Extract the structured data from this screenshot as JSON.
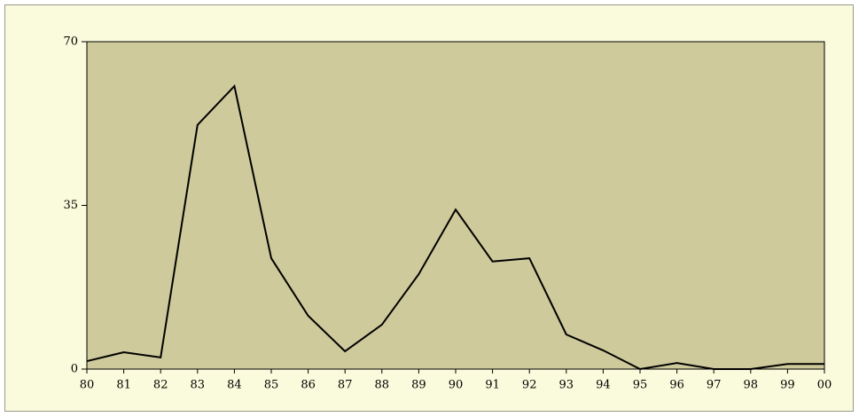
{
  "chart_data": {
    "type": "line",
    "categories": [
      "80",
      "81",
      "82",
      "83",
      "84",
      "85",
      "86",
      "87",
      "88",
      "89",
      "90",
      "91",
      "92",
      "93",
      "94",
      "95",
      "96",
      "97",
      "98",
      "99",
      "00"
    ],
    "values": [
      1.7,
      3.6,
      2.5,
      52.2,
      60.5,
      23.7,
      11.4,
      3.8,
      9.5,
      20.3,
      34.1,
      23,
      23.7,
      7.4,
      4,
      0,
      1.3,
      0,
      0,
      1.1,
      1.1
    ],
    "color": "#000000",
    "ylim": [
      0,
      70
    ],
    "yticks": [
      0,
      35,
      70
    ]
  }
}
